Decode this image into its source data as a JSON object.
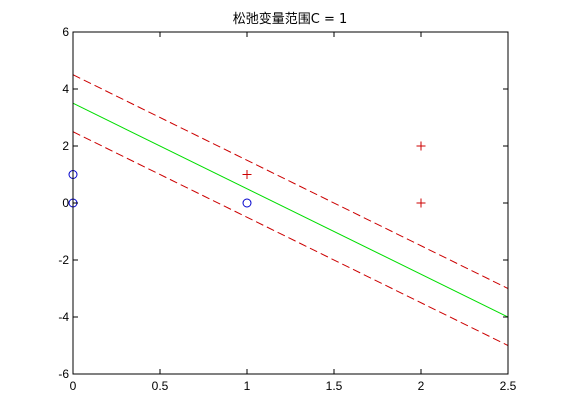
{
  "chart_data": {
    "type": "scatter",
    "title": "松弛变量范围C = 1",
    "xlabel": "",
    "ylabel": "",
    "xlim": [
      0,
      2.5
    ],
    "ylim": [
      -6,
      6
    ],
    "x_ticks": [
      0,
      0.5,
      1,
      1.5,
      2,
      2.5
    ],
    "y_ticks": [
      -6,
      -4,
      -2,
      0,
      2,
      4,
      6
    ],
    "x_tick_labels": [
      "0",
      "0.5",
      "1",
      "1.5",
      "2",
      "2.5"
    ],
    "y_tick_labels": [
      "-6",
      "-4",
      "-2",
      "0",
      "2",
      "4",
      "6"
    ],
    "grid": false,
    "lines": [
      {
        "role": "decision-boundary",
        "style": "solid",
        "color": "#00dd00",
        "x": [
          0,
          2.5
        ],
        "y": [
          3.5,
          -4.0
        ]
      },
      {
        "role": "upper-margin",
        "style": "dashed",
        "color": "#cc0000",
        "x": [
          0,
          2.5
        ],
        "y": [
          4.5,
          -3.0
        ]
      },
      {
        "role": "lower-margin",
        "style": "dashed",
        "color": "#cc0000",
        "x": [
          0,
          2.5
        ],
        "y": [
          2.5,
          -5.0
        ]
      }
    ],
    "series": [
      {
        "marker": "circle",
        "color": "#0000cc",
        "points": [
          [
            0,
            1
          ],
          [
            0,
            0
          ],
          [
            1,
            0
          ]
        ]
      },
      {
        "marker": "plus",
        "color": "#cc0000",
        "points": [
          [
            1,
            1
          ],
          [
            2,
            2
          ],
          [
            2,
            0
          ]
        ]
      }
    ]
  }
}
